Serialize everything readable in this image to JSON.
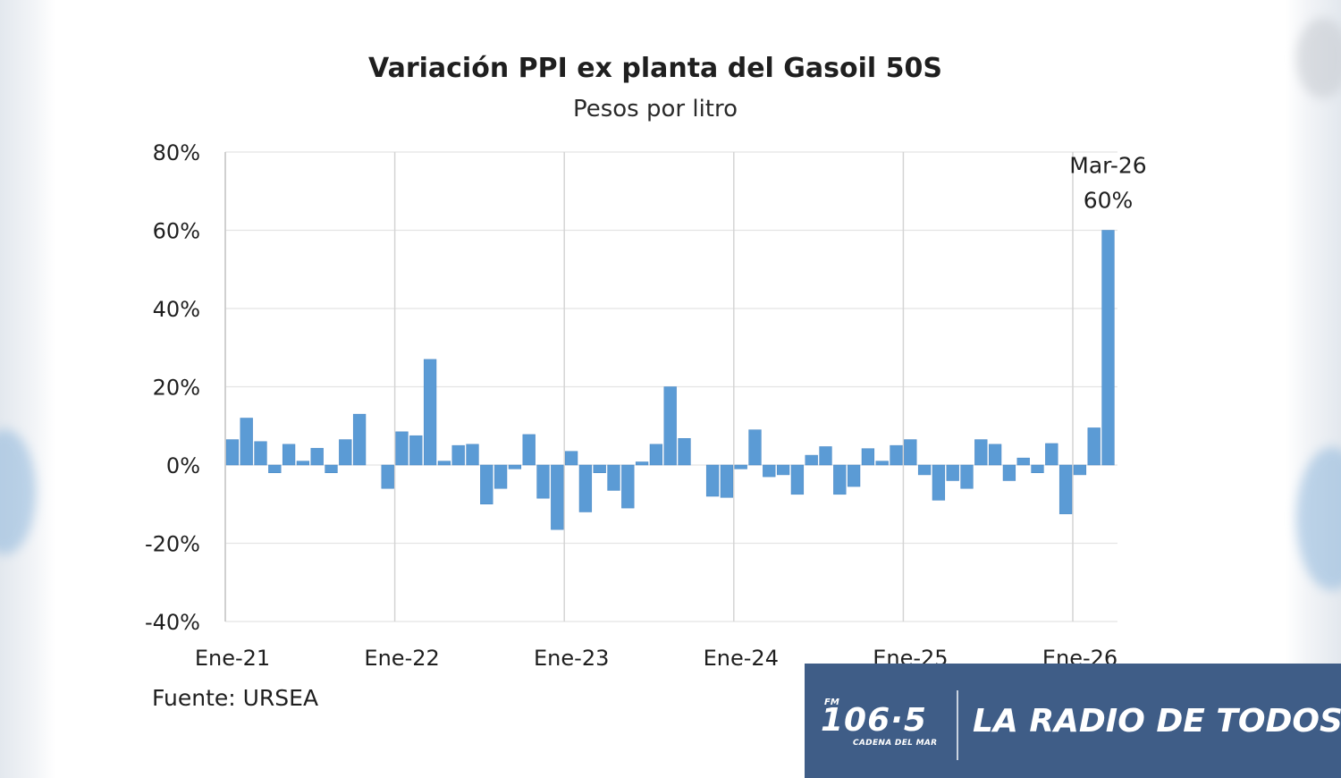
{
  "chart_data": {
    "type": "bar",
    "title": "Variación PPI ex planta del Gasoil 50S",
    "subtitle": "Pesos por litro",
    "ylim": [
      -40,
      80
    ],
    "yticks": [
      "-40%",
      "-20%",
      "0%",
      "20%",
      "40%",
      "60%",
      "80%"
    ],
    "yticks_values": [
      -40,
      -20,
      0,
      20,
      40,
      60,
      80
    ],
    "xtick_labels": [
      "Ene-21",
      "Ene-22",
      "Ene-23",
      "Ene-24",
      "Ene-25",
      "Ene-26"
    ],
    "xtick_indices": [
      0,
      12,
      24,
      36,
      48,
      60
    ],
    "values": [
      6.5,
      12,
      6,
      -2,
      5.3,
      1,
      4.3,
      -2,
      6.5,
      13,
      0,
      -6,
      8.5,
      7.5,
      27,
      1,
      5,
      5.3,
      -10,
      -6,
      -1,
      7.8,
      -8.5,
      -16.5,
      3.5,
      -12,
      -2,
      -6.5,
      -11,
      0.8,
      5.3,
      20,
      6.8,
      0,
      -8,
      -8.3,
      -1,
      9,
      -3,
      -2.5,
      -7.5,
      2.5,
      4.7,
      -7.5,
      -5.5,
      4.2,
      1,
      5,
      6.5,
      -2.5,
      -9,
      -4,
      -6,
      6.5,
      5.3,
      -4,
      1.8,
      -2,
      5.5,
      -12.5,
      -2.5,
      9.5,
      60
    ],
    "bar_color": "#5b9bd5",
    "grid": true,
    "annotation": {
      "label": "Mar-26",
      "value": "60%"
    }
  },
  "source_text": "Fuente: URSEA",
  "banner": {
    "logo_fm": "FM",
    "logo_number": "106·5",
    "logo_subtitle": "CADENA DEL MAR",
    "tagline": "LA RADIO DE TODOS",
    "color": "#3f5d87"
  }
}
